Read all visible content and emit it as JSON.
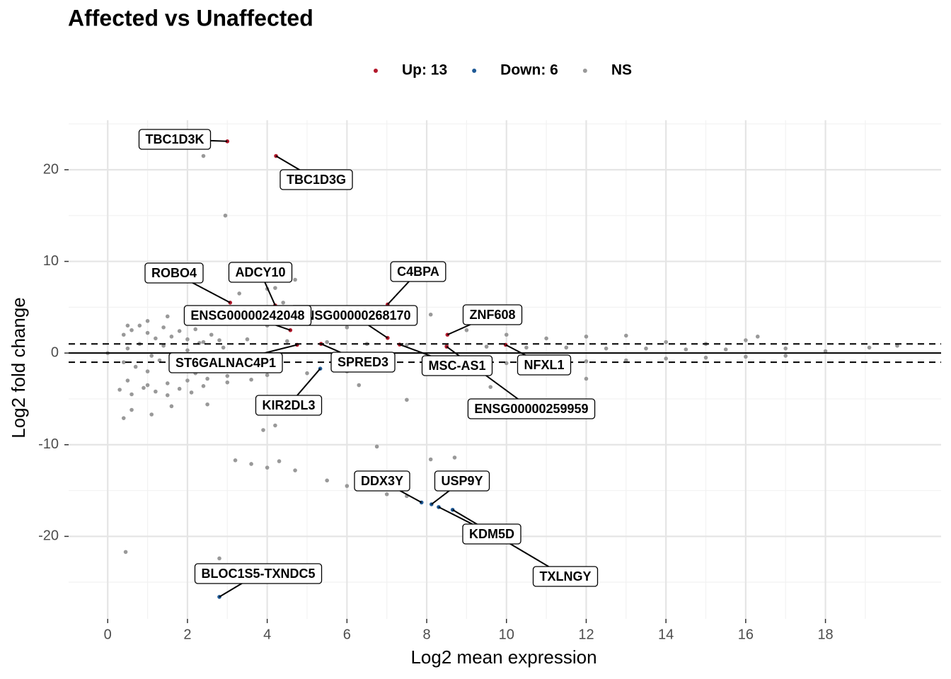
{
  "chart_data": {
    "type": "scatter",
    "title": "Affected vs Unaffected",
    "x_label": "Log2 mean expression",
    "y_label": "Log2 fold change",
    "legend": "top",
    "grid": true,
    "xlim": [
      -0.98,
      20.9
    ],
    "ylim": [
      -29.0,
      25.4
    ],
    "xticks": [
      0,
      2,
      4,
      6,
      8,
      10,
      12,
      14,
      16,
      18
    ],
    "yticks": [
      -20,
      -10,
      0,
      10,
      20
    ],
    "minor_xticks": [
      1,
      3,
      5,
      7,
      9,
      11,
      13,
      15,
      17,
      19
    ],
    "minor_yticks": [
      -25,
      -15,
      -5,
      5,
      15,
      25
    ],
    "hline": 0,
    "dashed_hlines": [
      -1,
      1
    ],
    "series": [
      {
        "name": "NS",
        "color": "#999999",
        "x": [
          2.4,
          2.95,
          4.0,
          4.2,
          4.7,
          3.3,
          4.4,
          7.6,
          8.1,
          3.2,
          3.6,
          4.0,
          4.3,
          4.7,
          5.5,
          6.75,
          8.1,
          8.7,
          6.0,
          7.0,
          7.5,
          0.45,
          2.8,
          3.9,
          4.2,
          0.4,
          0.6,
          1.1,
          1.6,
          2.5,
          6.3,
          7.5,
          9.6,
          12.0,
          0.0,
          0.5,
          1.0,
          1.5,
          2.0,
          2.5,
          3.0,
          3.5,
          4.0,
          5.0,
          6.0,
          7.0,
          9.0,
          10.0,
          11.0,
          12.0,
          13.0,
          14.0,
          15.0,
          16.0,
          16.3,
          17.0,
          18.0,
          19.1,
          19.8,
          0.5,
          1.0,
          1.5,
          2.0,
          2.5,
          3.0,
          4.0,
          5.0,
          6.0,
          7.0,
          8.0,
          9.0,
          10.0,
          11.0,
          12.0,
          13.0,
          14.0,
          15.0,
          16.0,
          17.0,
          0.4,
          0.6,
          0.8,
          1.0,
          1.2,
          1.4,
          1.6,
          1.8,
          2.0,
          2.2,
          2.4,
          2.6,
          2.8,
          0.4,
          0.7,
          1.0,
          1.3,
          1.6,
          1.9,
          2.2,
          2.5,
          2.8,
          3.1,
          0.5,
          0.8,
          1.1,
          1.4,
          1.7,
          2.0,
          2.3,
          2.6,
          2.9,
          3.5,
          4.5,
          5.5,
          6.5,
          7.5,
          8.5,
          9.5,
          10.5,
          11.5,
          12.5,
          13.5,
          14.5,
          15.5,
          0.3,
          0.6,
          0.9,
          1.2,
          1.5,
          1.8,
          2.1,
          2.4,
          3.0,
          3.6
        ],
        "y": [
          21.5,
          15.0,
          7.0,
          7.1,
          8.0,
          6.5,
          5.5,
          4.4,
          4.2,
          -11.7,
          -12.1,
          -12.5,
          -11.8,
          -12.8,
          -13.9,
          -10.2,
          -11.6,
          -11.4,
          -14.5,
          -15.4,
          -15.6,
          -21.7,
          -22.4,
          -8.4,
          -7.9,
          -7.1,
          -6.2,
          -6.7,
          -5.8,
          -5.6,
          -3.5,
          -5.1,
          -3.7,
          -2.8,
          0.0,
          3.0,
          3.5,
          4.0,
          4.5,
          4.3,
          3.8,
          3.2,
          3.0,
          3.5,
          2.8,
          3.2,
          2.5,
          2.0,
          1.6,
          1.8,
          1.9,
          1.2,
          1.0,
          1.4,
          1.8,
          0.5,
          0.2,
          0.6,
          0.8,
          -3.0,
          -3.5,
          -3.3,
          -3.0,
          -2.8,
          -2.5,
          -2.4,
          -2.2,
          -2.0,
          -1.7,
          -1.5,
          -1.3,
          -1.1,
          -1.0,
          -0.9,
          -0.8,
          -0.6,
          -0.5,
          -0.4,
          -0.3,
          2.0,
          2.5,
          3.0,
          2.2,
          1.6,
          2.8,
          1.8,
          2.4,
          1.5,
          2.6,
          1.2,
          2.0,
          1.4,
          -1.0,
          -1.5,
          -2.0,
          -0.8,
          -1.8,
          -1.2,
          -2.2,
          -0.6,
          -1.4,
          -1.0,
          0.5,
          1.0,
          -0.3,
          0.8,
          -0.5,
          0.3,
          1.1,
          -0.7,
          0.6,
          1.5,
          1.3,
          1.2,
          1.0,
          0.9,
          0.8,
          0.7,
          0.6,
          0.6,
          0.5,
          0.5,
          0.4,
          0.4,
          -4.0,
          -4.5,
          -3.8,
          -4.2,
          -4.6,
          -3.9,
          -4.3,
          -3.6,
          -3.2,
          -2.9
        ]
      },
      {
        "name": "Up: 13",
        "color": "#b2182b",
        "x": [
          3.0,
          4.22,
          3.07,
          4.2,
          7.02,
          4.58,
          7.02,
          8.52,
          7.32,
          9.98,
          8.5,
          4.75,
          5.35
        ],
        "y": [
          23.1,
          21.5,
          5.5,
          5.2,
          5.3,
          2.5,
          1.65,
          2.0,
          0.93,
          0.9,
          0.7,
          0.9,
          1.0
        ],
        "labels": [
          "TBC1D3K",
          "TBC1D3G",
          "ROBO4",
          "ADCY10",
          "C4BPA",
          "ENSG00000242048",
          "ENSG00000268170",
          "ZNF608",
          "MSC-AS1",
          "NFXL1",
          "ENSG00000259959",
          "ST6GALNAC4P1",
          "SPRED3"
        ]
      },
      {
        "name": "Down: 6",
        "color": "#1f5a96",
        "x": [
          2.8,
          5.33,
          7.87,
          8.12,
          8.3,
          8.65
        ],
        "y": [
          -26.6,
          -1.7,
          -16.3,
          -16.5,
          -16.8,
          -17.1
        ],
        "labels": [
          "BLOC1S5-TXNDC5",
          "KIR2DL3",
          "DDX3Y",
          "USP9Y",
          "KDM5D",
          "TXLNGY"
        ]
      }
    ]
  }
}
